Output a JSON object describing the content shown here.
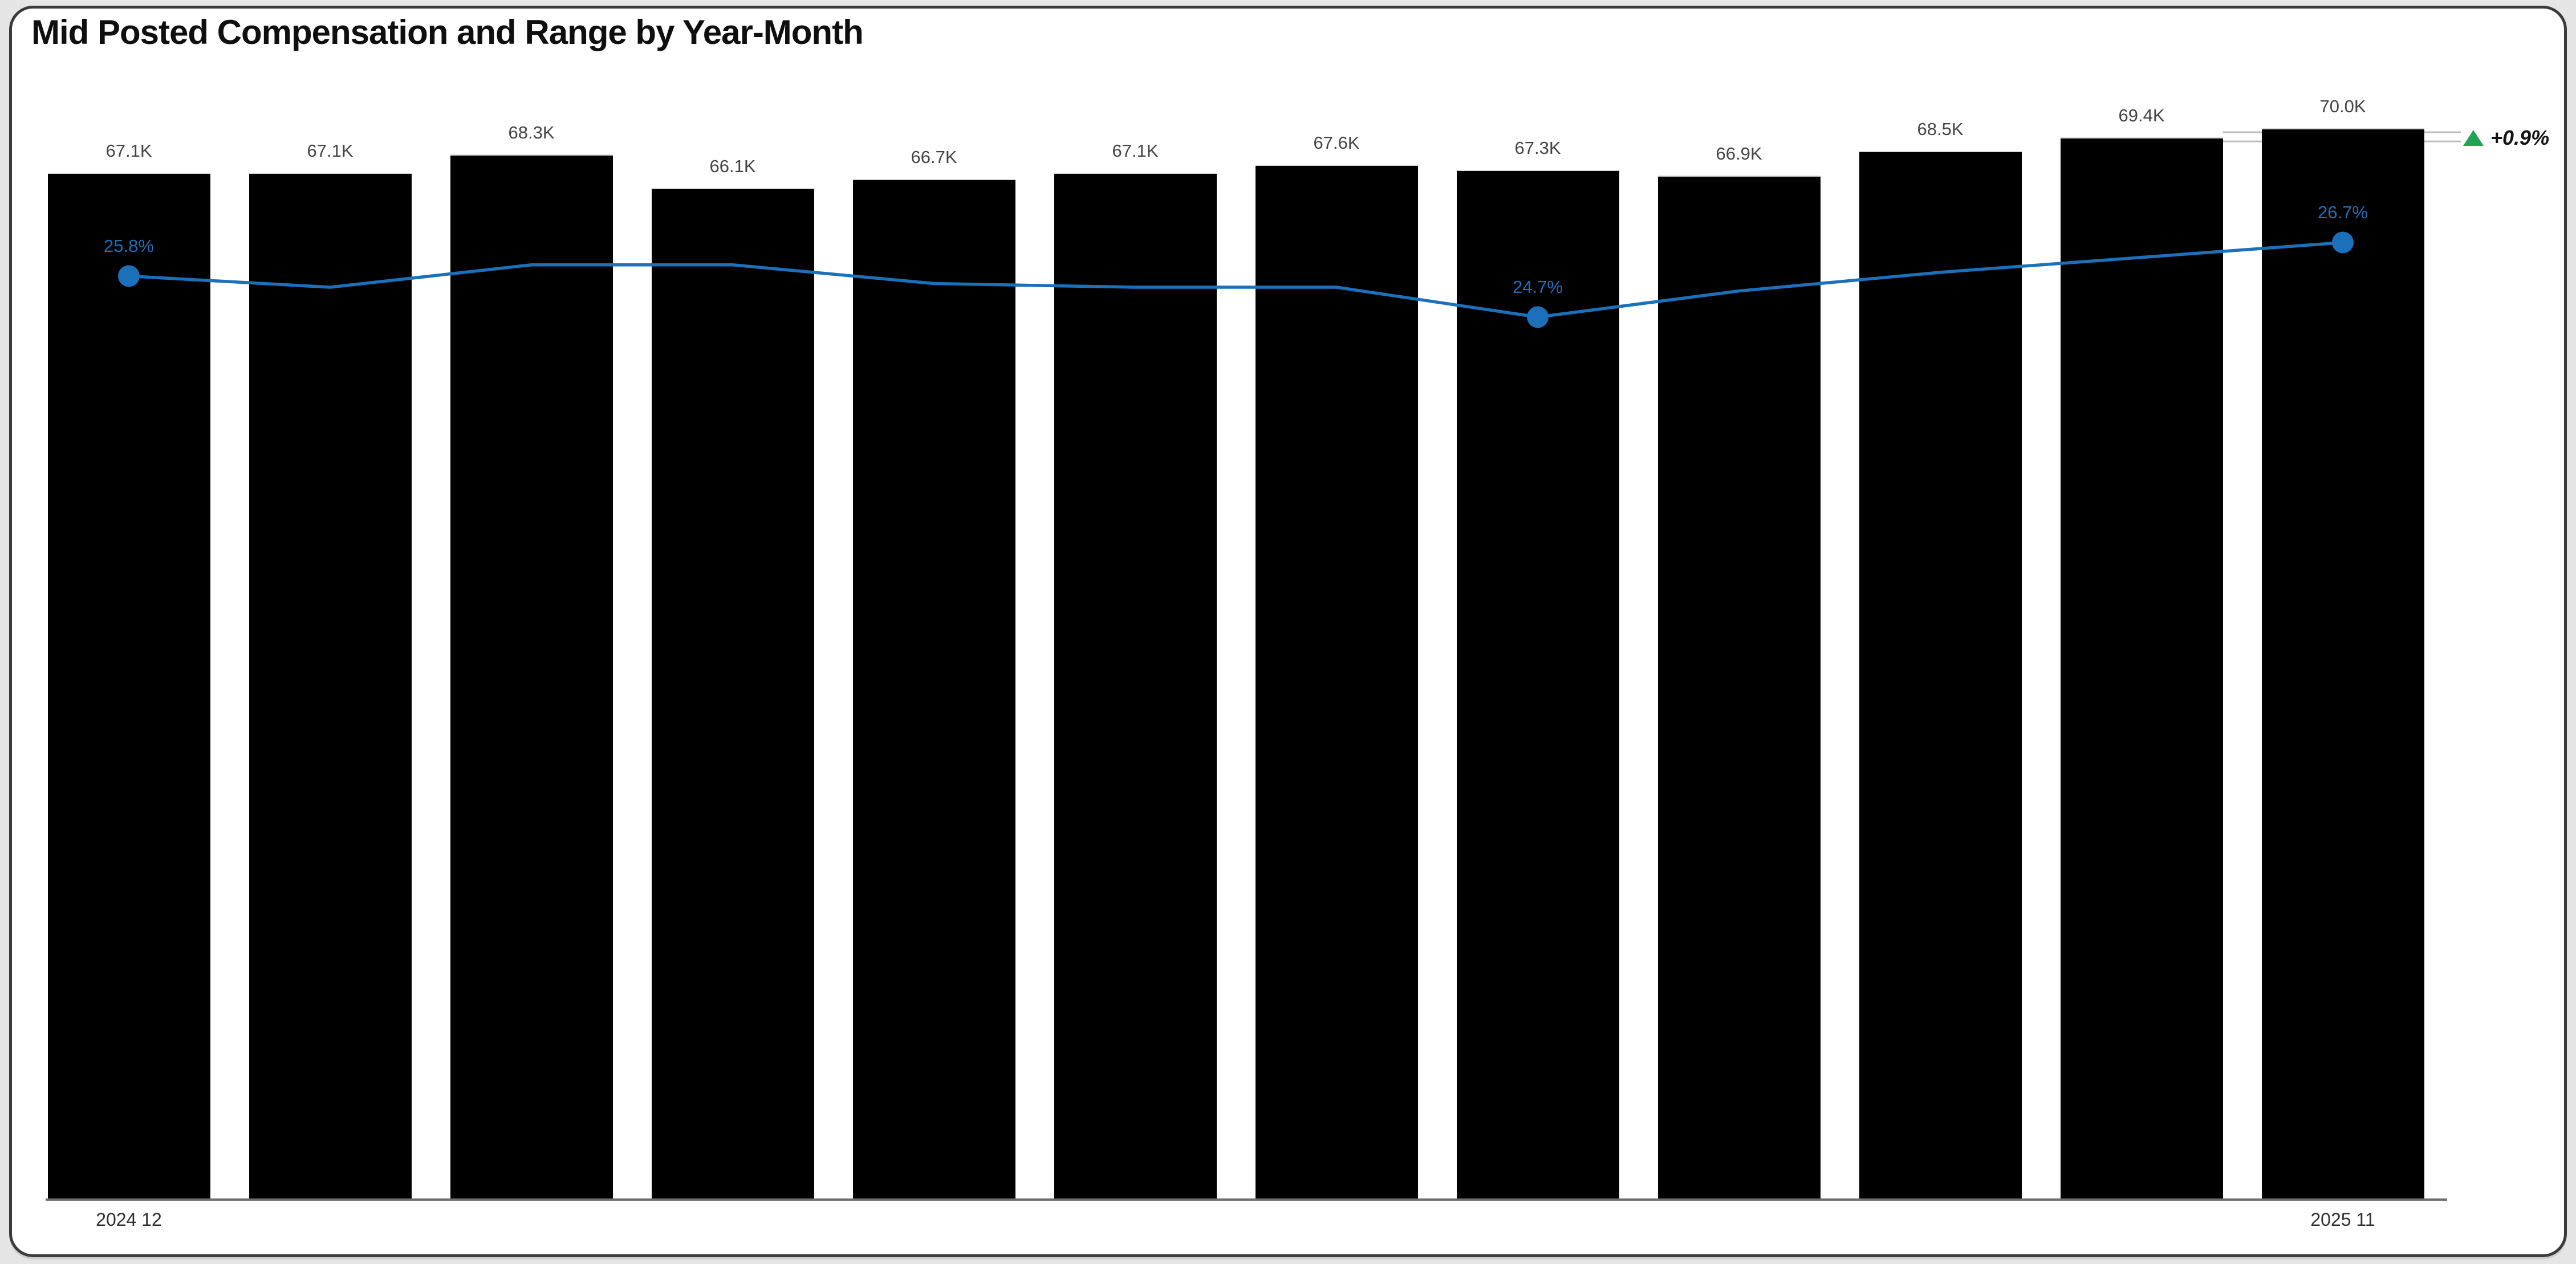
{
  "page": {
    "title": "Mid Posted Compensation and Range by Year-Month"
  },
  "x_axis": {
    "first_label": "2024 12",
    "last_label": "2025 11"
  },
  "annotation": {
    "delta_label": "+0.9%",
    "direction": "up"
  },
  "colors": {
    "bar": "#000000",
    "line": "#1C70BA",
    "marker": "#1C70BA",
    "pct_label": "#1C70BA",
    "positive_delta": "#23A455",
    "bracket_line": "#bcbcbc",
    "bar_value_label": "#444444",
    "axis_label": "#2f2f2f"
  },
  "chart_data": {
    "type": "combo",
    "title": "Mid Posted Compensation and Range by Year-Month",
    "n_categories": 12,
    "x_tick_labels_shown": [
      "2024 12",
      "2025 11"
    ],
    "grid": "off",
    "legend": "none",
    "ylim_bar_k": [
      0,
      70
    ],
    "bar_series": {
      "name": "mid-posted-compensation",
      "unit": "K",
      "values_k": [
        67.1,
        67.1,
        68.3,
        66.1,
        66.7,
        67.1,
        67.6,
        67.3,
        66.9,
        68.5,
        69.4,
        70.0
      ],
      "data_labels": [
        "67.1K",
        "67.1K",
        "68.3K",
        "66.1K",
        "66.7K",
        "67.1K",
        "67.6K",
        "67.3K",
        "66.9K",
        "68.5K",
        "69.4K",
        "70.0K"
      ]
    },
    "line_series": {
      "name": "percentage-trend",
      "values_pct_estimated": [
        25.8,
        25.5,
        26.1,
        26.1,
        25.6,
        25.5,
        25.5,
        24.7,
        25.4,
        25.9,
        26.3,
        26.7
      ],
      "labeled_points": [
        {
          "index": 0,
          "label": "25.8%"
        },
        {
          "index": 7,
          "label": "24.7%"
        },
        {
          "index": 11,
          "label": "26.7%"
        }
      ]
    },
    "annotations": [
      {
        "text": "+0.9%",
        "symbol": "triangle-up",
        "color_hex": "#23A455",
        "attached_to": "last-two-bars-delta"
      }
    ]
  }
}
